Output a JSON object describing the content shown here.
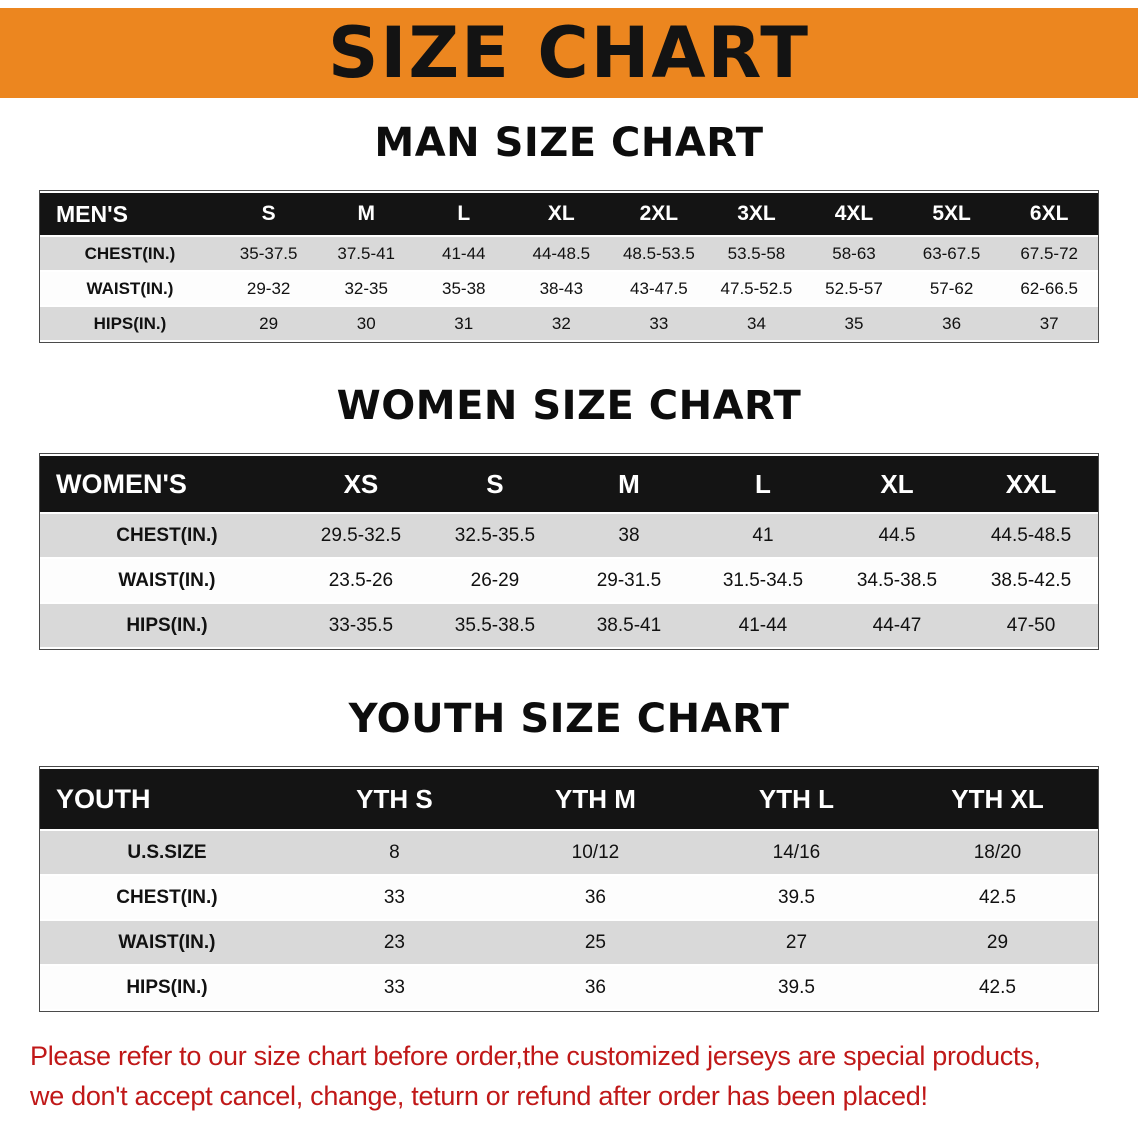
{
  "banner": {
    "title": "SIZE CHART",
    "bg_color": "#EC861F"
  },
  "sections": [
    {
      "heading": "MAN SIZE CHART",
      "table": {
        "header": [
          "MEN'S",
          "S",
          "M",
          "L",
          "XL",
          "2XL",
          "3XL",
          "4XL",
          "5XL",
          "6XL"
        ],
        "rows": [
          [
            "CHEST(IN.)",
            "35-37.5",
            "37.5-41",
            "41-44",
            "44-48.5",
            "48.5-53.5",
            "53.5-58",
            "58-63",
            "63-67.5",
            "67.5-72"
          ],
          [
            "WAIST(IN.)",
            "29-32",
            "32-35",
            "35-38",
            "38-43",
            "43-47.5",
            "47.5-52.5",
            "52.5-57",
            "57-62",
            "62-66.5"
          ],
          [
            "HIPS(IN.)",
            "29",
            "30",
            "31",
            "32",
            "33",
            "34",
            "35",
            "36",
            "37"
          ]
        ]
      }
    },
    {
      "heading": "WOMEN SIZE CHART",
      "table": {
        "header": [
          "WOMEN'S",
          "XS",
          "S",
          "M",
          "L",
          "XL",
          "XXL"
        ],
        "rows": [
          [
            "CHEST(IN.)",
            "29.5-32.5",
            "32.5-35.5",
            "38",
            "41",
            "44.5",
            "44.5-48.5"
          ],
          [
            "WAIST(IN.)",
            "23.5-26",
            "26-29",
            "29-31.5",
            "31.5-34.5",
            "34.5-38.5",
            "38.5-42.5"
          ],
          [
            "HIPS(IN.)",
            "33-35.5",
            "35.5-38.5",
            "38.5-41",
            "41-44",
            "44-47",
            "47-50"
          ]
        ]
      }
    },
    {
      "heading": "YOUTH SIZE CHART",
      "table": {
        "header": [
          "YOUTH",
          "YTH S",
          "YTH M",
          "YTH L",
          "YTH XL"
        ],
        "rows": [
          [
            "U.S.SIZE",
            "8",
            "10/12",
            "14/16",
            "18/20"
          ],
          [
            "CHEST(IN.)",
            "33",
            "36",
            "39.5",
            "42.5"
          ],
          [
            "WAIST(IN.)",
            "23",
            "25",
            "27",
            "29"
          ],
          [
            "HIPS(IN.)",
            "33",
            "36",
            "39.5",
            "42.5"
          ]
        ]
      }
    }
  ],
  "disclaimer": {
    "color": "#C01818",
    "lines": [
      "Please refer to our size chart before order,the customized jerseys are special products,",
      "we don't accept cancel, change, teturn or refund after order has been placed!"
    ]
  }
}
